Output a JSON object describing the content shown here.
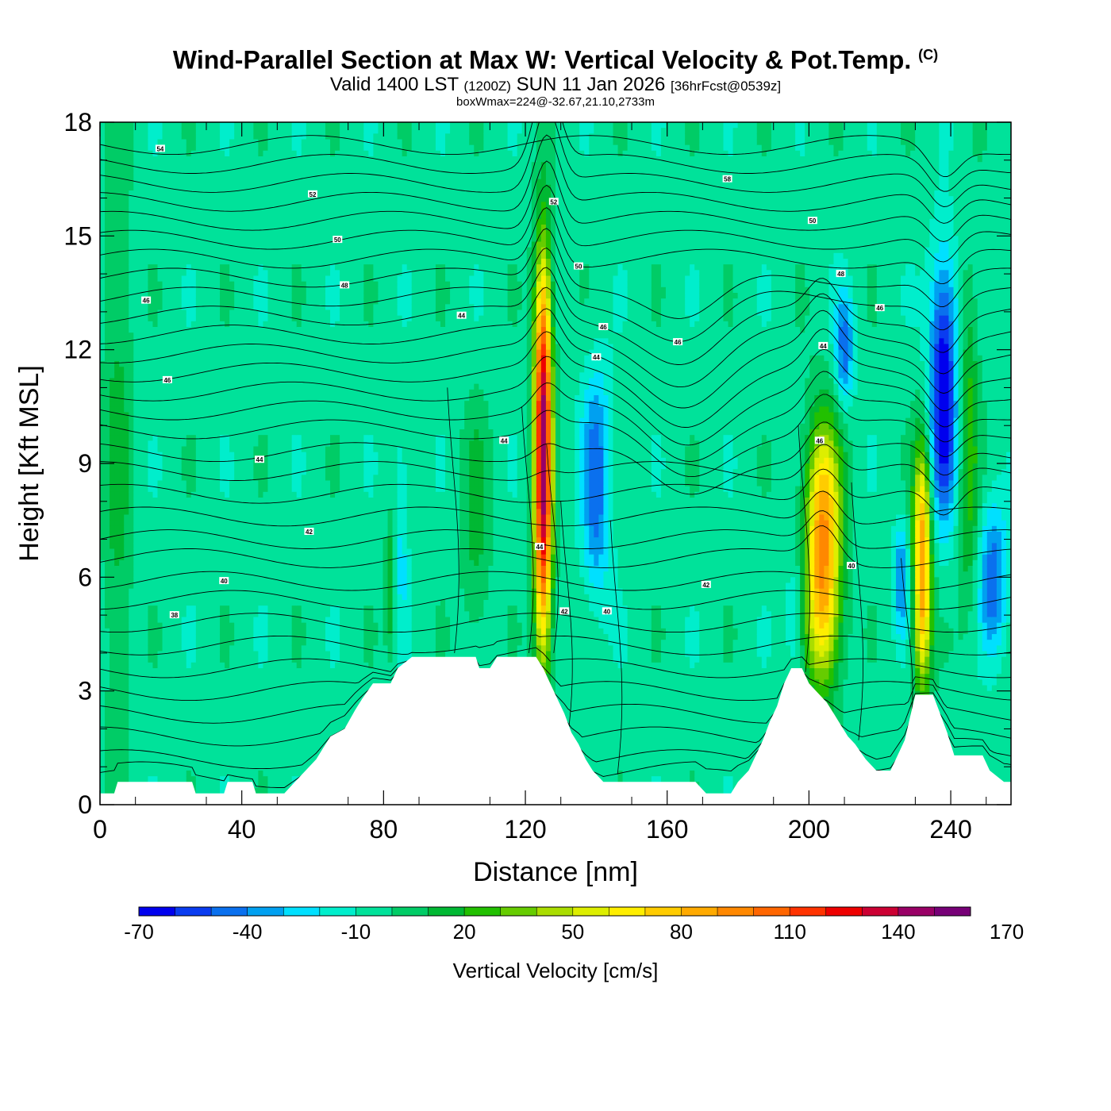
{
  "title": {
    "main": "Wind-Parallel Section at Max W: Vertical Velocity & Pot.Temp.",
    "copyright": "(C)",
    "line2_a": "Valid 1400 LST",
    "line2_b": "(1200Z)",
    "line2_c": "SUN 11 Jan 2026",
    "line2_d": "[36hrFcst@0539z]",
    "line3": "boxWmax=224@-32.67,21.10,2733m"
  },
  "chart_data": {
    "type": "heatmap",
    "xlabel": "Distance [nm]",
    "ylabel": "Height [Kft MSL]",
    "xlim": [
      0,
      257
    ],
    "ylim": [
      0,
      18
    ],
    "x_ticks": [
      0,
      40,
      80,
      120,
      160,
      200,
      240
    ],
    "y_ticks": [
      0,
      3,
      6,
      9,
      12,
      15,
      18
    ],
    "grid": false,
    "background_level": -5,
    "updraft_features": [
      {
        "x": 125,
        "y_bottom": 4.0,
        "y_top": 14.5,
        "peak": 150,
        "half_width_nm": 2.5
      },
      {
        "x": 82,
        "y_bottom": 4.0,
        "y_top": 7.5,
        "peak": 25,
        "half_width_nm": 1.5
      },
      {
        "x": 106,
        "y_bottom": 4.0,
        "y_top": 10.5,
        "peak": 18,
        "half_width_nm": 4
      },
      {
        "x": 204,
        "y_bottom": 3.2,
        "y_top": 10.0,
        "peak": 100,
        "half_width_nm": 5
      },
      {
        "x": 232,
        "y_bottom": 3.0,
        "y_top": 9.5,
        "peak": 95,
        "half_width_nm": 2.5
      },
      {
        "x": 5,
        "y_bottom": 0.5,
        "y_top": 18,
        "peak": 18,
        "half_width_nm": 4
      },
      {
        "x": 245,
        "y_bottom": 5,
        "y_top": 14,
        "peak": 30,
        "half_width_nm": 3
      }
    ],
    "downdraft_features": [
      {
        "x": 140,
        "y_bottom": 5.5,
        "y_top": 11.5,
        "peak": -40,
        "half_width_nm": 4
      },
      {
        "x": 238,
        "y_bottom": 7.5,
        "y_top": 14.5,
        "peak": -65,
        "half_width_nm": 4
      },
      {
        "x": 210,
        "y_bottom": 10.5,
        "y_top": 13.5,
        "peak": -40,
        "half_width_nm": 2.5
      },
      {
        "x": 226,
        "y_bottom": 4.5,
        "y_top": 7.5,
        "peak": -35,
        "half_width_nm": 2
      },
      {
        "x": 252,
        "y_bottom": 4,
        "y_top": 8,
        "peak": -40,
        "half_width_nm": 4
      },
      {
        "x": 196,
        "y_bottom": 3.5,
        "y_top": 6.5,
        "peak": -20,
        "half_width_nm": 2.5
      },
      {
        "x": 85,
        "y_bottom": 4.5,
        "y_top": 10,
        "peak": -18,
        "half_width_nm": 2
      }
    ],
    "terrain_kft": [
      [
        0,
        0.3
      ],
      [
        4,
        0.3
      ],
      [
        5,
        0.6
      ],
      [
        26,
        0.6
      ],
      [
        27,
        0.3
      ],
      [
        35,
        0.3
      ],
      [
        36,
        0.6
      ],
      [
        43,
        0.6
      ],
      [
        44,
        0.3
      ],
      [
        52,
        0.3
      ],
      [
        55,
        0.6
      ],
      [
        58,
        0.9
      ],
      [
        61,
        1.2
      ],
      [
        63,
        1.5
      ],
      [
        65,
        1.8
      ],
      [
        69,
        2.0
      ],
      [
        72,
        2.5
      ],
      [
        74,
        2.8
      ],
      [
        77,
        3.2
      ],
      [
        82,
        3.2
      ],
      [
        84,
        3.6
      ],
      [
        88,
        3.9
      ],
      [
        106,
        3.9
      ],
      [
        107,
        3.6
      ],
      [
        110,
        3.6
      ],
      [
        112,
        3.9
      ],
      [
        123,
        3.9
      ],
      [
        125,
        3.6
      ],
      [
        127,
        3.2
      ],
      [
        129,
        2.8
      ],
      [
        131,
        2.4
      ],
      [
        133,
        1.9
      ],
      [
        135,
        1.6
      ],
      [
        137,
        1.2
      ],
      [
        139,
        0.9
      ],
      [
        142,
        0.6
      ],
      [
        168,
        0.6
      ],
      [
        171,
        0.3
      ],
      [
        178,
        0.3
      ],
      [
        180,
        0.6
      ],
      [
        183,
        0.9
      ],
      [
        185,
        1.3
      ],
      [
        187,
        1.7
      ],
      [
        189,
        2.2
      ],
      [
        191,
        2.6
      ],
      [
        193,
        3.2
      ],
      [
        195,
        3.6
      ],
      [
        198,
        3.6
      ],
      [
        200,
        3.2
      ],
      [
        202,
        3.0
      ],
      [
        205,
        2.7
      ],
      [
        207,
        2.4
      ],
      [
        209,
        2.1
      ],
      [
        211,
        1.8
      ],
      [
        213,
        1.6
      ],
      [
        216,
        1.2
      ],
      [
        219,
        0.9
      ],
      [
        223,
        0.9
      ],
      [
        225,
        1.3
      ],
      [
        227,
        1.7
      ],
      [
        229,
        2.5
      ],
      [
        230,
        2.9
      ],
      [
        235,
        2.9
      ],
      [
        237,
        2.4
      ],
      [
        239,
        1.9
      ],
      [
        241,
        1.3
      ],
      [
        249,
        1.3
      ],
      [
        251,
        0.9
      ],
      [
        255,
        0.6
      ],
      [
        257,
        0.6
      ]
    ],
    "theta_contour_base_kft": [
      0.7,
      1.2,
      1.8,
      2.4,
      3.0,
      3.6,
      4.2,
      4.8,
      5.4,
      5.9,
      6.5,
      7.0,
      7.6,
      8.2,
      8.8,
      9.3,
      9.9,
      10.4,
      10.9,
      11.4,
      11.9,
      12.4,
      12.9,
      13.4,
      13.9,
      14.4,
      14.9,
      15.4,
      15.9,
      16.4,
      16.9,
      17.4
    ],
    "theta_labels": [
      {
        "text": "54",
        "x": 17,
        "y": 17.3
      },
      {
        "text": "52",
        "x": 60,
        "y": 16.1
      },
      {
        "text": "50",
        "x": 67,
        "y": 14.9
      },
      {
        "text": "48",
        "x": 69,
        "y": 13.7
      },
      {
        "text": "46",
        "x": 13,
        "y": 13.3
      },
      {
        "text": "46",
        "x": 19,
        "y": 11.2
      },
      {
        "text": "44",
        "x": 102,
        "y": 12.9
      },
      {
        "text": "44",
        "x": 45,
        "y": 9.1
      },
      {
        "text": "42",
        "x": 59,
        "y": 7.2
      },
      {
        "text": "40",
        "x": 35,
        "y": 5.9
      },
      {
        "text": "38",
        "x": 21,
        "y": 5.0
      },
      {
        "text": "44",
        "x": 114,
        "y": 9.6
      },
      {
        "text": "44",
        "x": 124,
        "y": 6.8
      },
      {
        "text": "52",
        "x": 128,
        "y": 15.9
      },
      {
        "text": "50",
        "x": 135,
        "y": 14.2
      },
      {
        "text": "46",
        "x": 142,
        "y": 12.6
      },
      {
        "text": "44",
        "x": 140,
        "y": 11.8
      },
      {
        "text": "46",
        "x": 163,
        "y": 12.2
      },
      {
        "text": "58",
        "x": 177,
        "y": 16.5
      },
      {
        "text": "50",
        "x": 201,
        "y": 15.4
      },
      {
        "text": "48",
        "x": 209,
        "y": 14.0
      },
      {
        "text": "46",
        "x": 220,
        "y": 13.1
      },
      {
        "text": "44",
        "x": 204,
        "y": 12.1
      },
      {
        "text": "46",
        "x": 203,
        "y": 9.6
      },
      {
        "text": "40",
        "x": 212,
        "y": 6.3
      },
      {
        "text": "42",
        "x": 171,
        "y": 5.8
      },
      {
        "text": "42",
        "x": 131,
        "y": 5.1
      },
      {
        "text": "40",
        "x": 143,
        "y": 5.1
      }
    ],
    "colorbar": {
      "title": "Vertical Velocity [cm/s]",
      "min": -70,
      "step": 10,
      "colors": [
        "#0000ee",
        "#0a3cf0",
        "#0a70ee",
        "#00a0f0",
        "#00e0ff",
        "#00eecc",
        "#00e29a",
        "#00cc66",
        "#00b833",
        "#22c000",
        "#66cc00",
        "#aadd00",
        "#ddee00",
        "#ffee00",
        "#ffcc00",
        "#ffaa00",
        "#ff8800",
        "#ff6600",
        "#ff3300",
        "#ee0000",
        "#cc0033",
        "#990066",
        "#770077"
      ],
      "tick_labels": [
        "-70",
        "-40",
        "-10",
        "20",
        "50",
        "80",
        "110",
        "140",
        "170"
      ]
    }
  }
}
